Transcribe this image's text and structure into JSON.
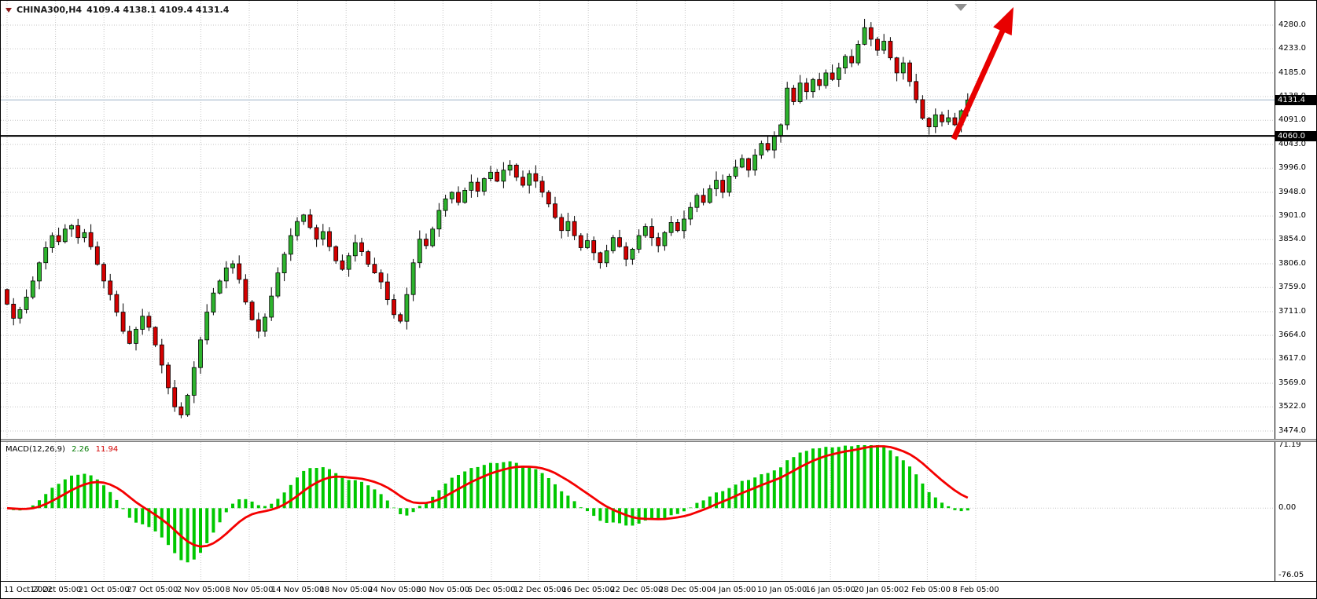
{
  "header": {
    "symbol_timeframe": "CHINA300,H4",
    "ohlc_values": "4109.4 4138.1 4109.4 4131.4"
  },
  "chart_data": {
    "type": "candlestick",
    "title": "CHINA300,H4",
    "price_axis_ticks": [
      4280.0,
      4233.0,
      4185.0,
      4138.0,
      4091.0,
      4043.0,
      3996.0,
      3948.0,
      3901.0,
      3854.0,
      3806.0,
      3759.0,
      3711.0,
      3664.0,
      3617.0,
      3569.0,
      3522.0,
      3474.0
    ],
    "time_axis_ticks": [
      "11 Oct 2022",
      "17 Oct 05:00",
      "21 Oct 05:00",
      "27 Oct 05:00",
      "2 Nov 05:00",
      "8 Nov 05:00",
      "14 Nov 05:00",
      "18 Nov 05:00",
      "24 Nov 05:00",
      "30 Nov 05:00",
      "6 Dec 05:00",
      "12 Dec 05:00",
      "16 Dec 05:00",
      "22 Dec 05:00",
      "28 Dec 05:00",
      "4 Jan 05:00",
      "10 Jan 05:00",
      "16 Jan 05:00",
      "20 Jan 05:00",
      "2 Feb 05:00",
      "8 Feb 05:00"
    ],
    "bid_price": 4131.4,
    "horizontal_line": 4060.0,
    "first_open": 3755,
    "closes": [
      3726,
      3698,
      3715,
      3740,
      3772,
      3808,
      3838,
      3862,
      3850,
      3875,
      3882,
      3858,
      3868,
      3840,
      3805,
      3772,
      3745,
      3710,
      3672,
      3648,
      3676,
      3702,
      3680,
      3645,
      3605,
      3560,
      3522,
      3506,
      3545,
      3600,
      3655,
      3710,
      3748,
      3772,
      3798,
      3806,
      3775,
      3730,
      3695,
      3672,
      3700,
      3742,
      3788,
      3825,
      3862,
      3890,
      3903,
      3878,
      3855,
      3870,
      3840,
      3812,
      3795,
      3822,
      3848,
      3830,
      3805,
      3788,
      3770,
      3735,
      3705,
      3692,
      3745,
      3808,
      3855,
      3842,
      3875,
      3912,
      3935,
      3948,
      3928,
      3952,
      3968,
      3950,
      3975,
      3988,
      3970,
      3992,
      4002,
      3978,
      3962,
      3985,
      3970,
      3948,
      3925,
      3898,
      3872,
      3890,
      3862,
      3838,
      3852,
      3828,
      3808,
      3832,
      3858,
      3840,
      3815,
      3835,
      3862,
      3880,
      3858,
      3842,
      3868,
      3888,
      3872,
      3895,
      3918,
      3942,
      3928,
      3955,
      3972,
      3948,
      3980,
      3998,
      4015,
      3992,
      4022,
      4045,
      4032,
      4060,
      4082,
      4155,
      4128,
      4165,
      4148,
      4172,
      4160,
      4185,
      4172,
      4195,
      4218,
      4205,
      4242,
      4275,
      4252,
      4230,
      4248,
      4215,
      4185,
      4205,
      4168,
      4132,
      4095,
      4078,
      4102,
      4088,
      4096,
      4082,
      4110,
      4131.4
    ],
    "indicator": {
      "name": "MACD(12,26,9)",
      "fast": 12,
      "slow": 26,
      "signal": 9,
      "main_value": "2.26",
      "signal_value": "11.94",
      "axis_ticks": [
        "71.19",
        "0.00",
        "-76.05"
      ],
      "axis_max": 71.19,
      "axis_min": -76.05
    },
    "colors": {
      "bull": "#2db32d",
      "bear": "#d40000",
      "outline": "#000000",
      "grid": "#c6c6c6",
      "bid_line": "#9db4c8",
      "hline": "#000000",
      "histogram": "#00c800",
      "signal_line": "#f40000",
      "arrow": "#e80000",
      "badge_bg": "#000000",
      "badge_text": "#ffffff",
      "autoscroll_marker": "#909090"
    }
  }
}
